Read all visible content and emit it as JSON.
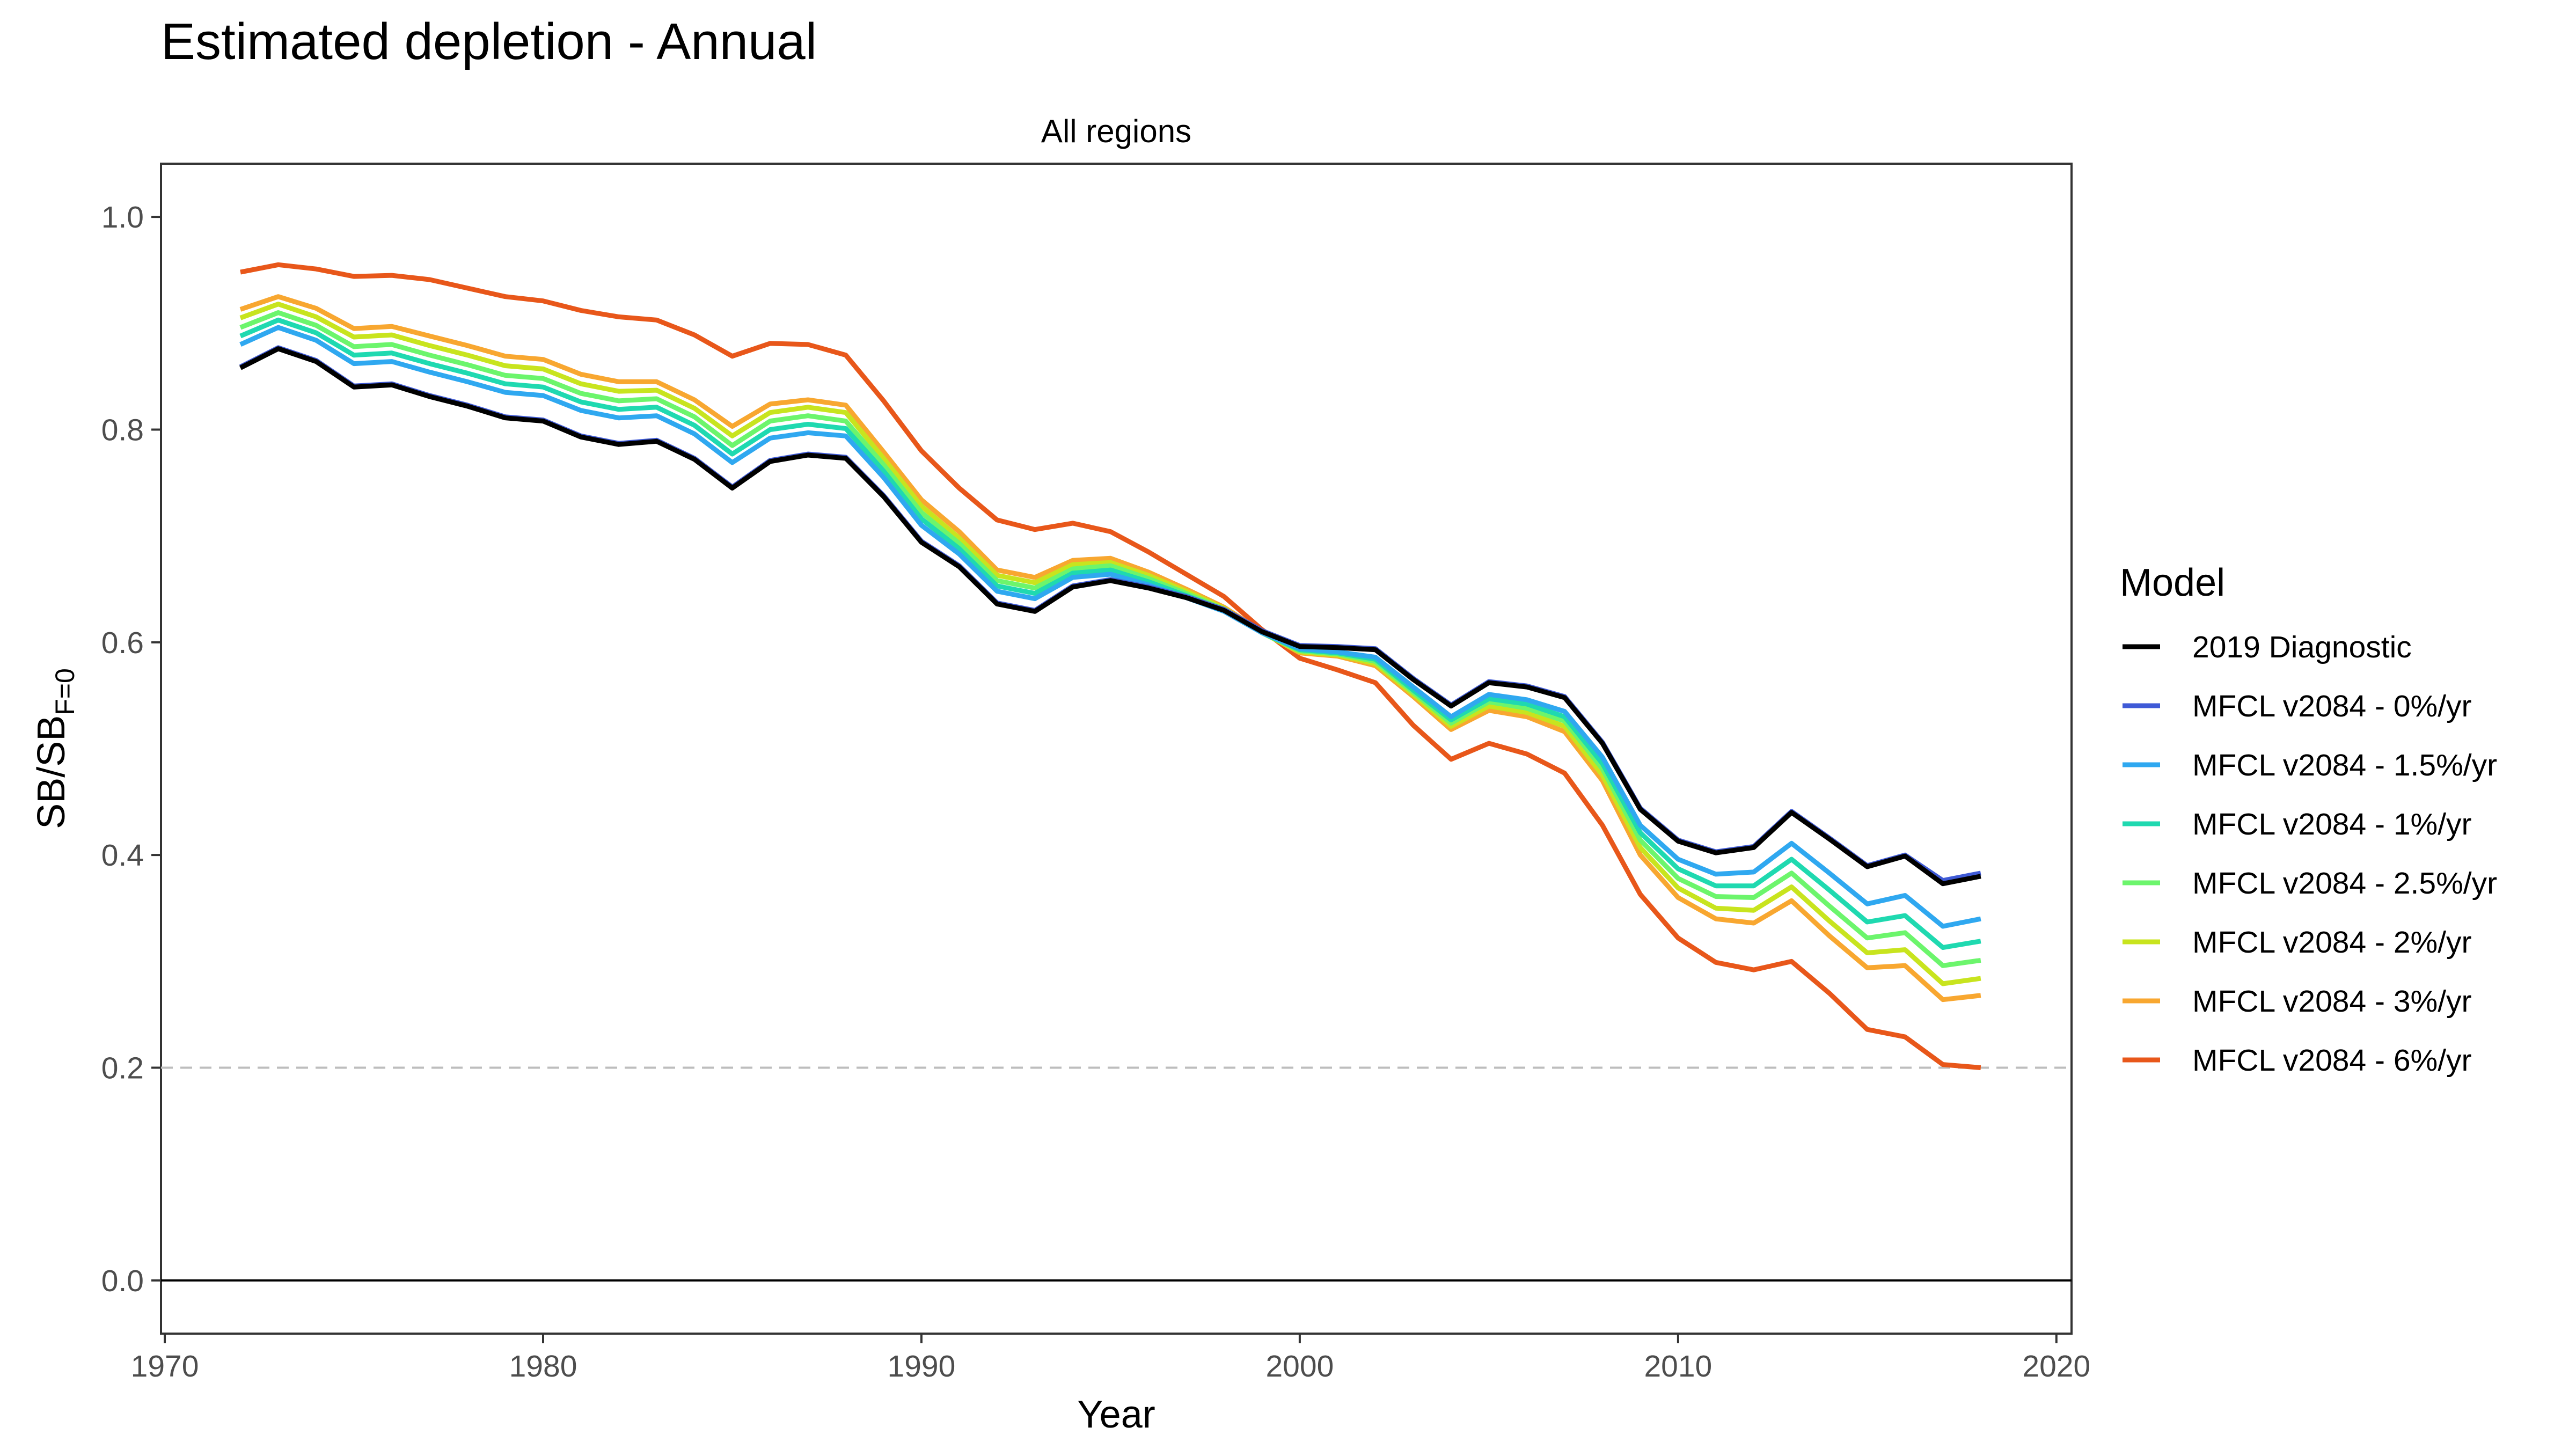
{
  "chart_data": {
    "type": "line",
    "title": "Estimated depletion - Annual",
    "panel_title": "All regions",
    "xlabel": "Year",
    "ylabel": {
      "main": "SB/SB",
      "subscript": "F=0"
    },
    "xlim": [
      1969.9,
      2020.4
    ],
    "ylim": [
      -0.05,
      1.05
    ],
    "x_ticks": [
      1970,
      1980,
      1990,
      2000,
      2010,
      2020
    ],
    "y_ticks": [
      0.0,
      0.2,
      0.4,
      0.6,
      0.8,
      1.0
    ],
    "y_tick_labels": [
      "0.0",
      "0.2",
      "0.4",
      "0.6",
      "0.8",
      "1.0"
    ],
    "reference_lines": [
      {
        "y": 0.2,
        "style": "dashed",
        "color": "#bdbdbd"
      },
      {
        "y": 0.0,
        "style": "solid",
        "color": "#000000"
      }
    ],
    "grid": false,
    "legend": {
      "title": "Model",
      "position": "right"
    },
    "x": [
      1972,
      1973,
      1974,
      1975,
      1976,
      1977,
      1978,
      1979,
      1980,
      1981,
      1982,
      1983,
      1984,
      1985,
      1986,
      1987,
      1988,
      1989,
      1990,
      1991,
      1992,
      1993,
      1994,
      1995,
      1996,
      1997,
      1998,
      1999,
      2000,
      2001,
      2002,
      2003,
      2004,
      2005,
      2006,
      2007,
      2008,
      2009,
      2010,
      2011,
      2012,
      2013,
      2014,
      2015,
      2016,
      2017,
      2018
    ],
    "series": [
      {
        "name": "2019 Diagnostic",
        "color": "#000000",
        "values": [
          0.858,
          0.876,
          0.864,
          0.84,
          0.842,
          0.831,
          0.822,
          0.811,
          0.808,
          0.793,
          0.786,
          0.789,
          0.772,
          0.745,
          0.77,
          0.776,
          0.773,
          0.737,
          0.694,
          0.671,
          0.636,
          0.629,
          0.652,
          0.658,
          0.651,
          0.642,
          0.63,
          0.61,
          0.596,
          0.595,
          0.593,
          0.565,
          0.54,
          0.562,
          0.558,
          0.548,
          0.505,
          0.443,
          0.413,
          0.402,
          0.407,
          0.44,
          0.415,
          0.389,
          0.399,
          0.373,
          0.38
        ]
      },
      {
        "name": "MFCL v2084 - 0%/yr",
        "color": "#3f5ad6",
        "values": [
          0.859,
          0.877,
          0.865,
          0.841,
          0.843,
          0.832,
          0.823,
          0.812,
          0.809,
          0.794,
          0.787,
          0.79,
          0.773,
          0.746,
          0.771,
          0.777,
          0.774,
          0.738,
          0.695,
          0.672,
          0.637,
          0.63,
          0.653,
          0.659,
          0.652,
          0.643,
          0.631,
          0.611,
          0.597,
          0.596,
          0.594,
          0.566,
          0.541,
          0.563,
          0.559,
          0.549,
          0.506,
          0.444,
          0.414,
          0.403,
          0.408,
          0.441,
          0.416,
          0.39,
          0.4,
          0.376,
          0.383
        ]
      },
      {
        "name": "MFCL v2084 - 1.5%/yr",
        "color": "#2fa8f0",
        "values": [
          0.88,
          0.896,
          0.884,
          0.862,
          0.864,
          0.854,
          0.845,
          0.835,
          0.832,
          0.818,
          0.811,
          0.813,
          0.796,
          0.769,
          0.792,
          0.797,
          0.794,
          0.755,
          0.71,
          0.683,
          0.648,
          0.641,
          0.661,
          0.664,
          0.654,
          0.642,
          0.629,
          0.609,
          0.594,
          0.591,
          0.586,
          0.558,
          0.53,
          0.551,
          0.546,
          0.535,
          0.492,
          0.428,
          0.396,
          0.382,
          0.384,
          0.411,
          0.383,
          0.354,
          0.362,
          0.333,
          0.34
        ]
      },
      {
        "name": "MFCL v2084 - 1%/yr",
        "color": "#1fd9b0",
        "values": [
          0.888,
          0.903,
          0.891,
          0.87,
          0.872,
          0.862,
          0.853,
          0.843,
          0.84,
          0.826,
          0.819,
          0.821,
          0.804,
          0.777,
          0.8,
          0.805,
          0.801,
          0.761,
          0.716,
          0.688,
          0.653,
          0.646,
          0.665,
          0.668,
          0.657,
          0.644,
          0.63,
          0.609,
          0.593,
          0.59,
          0.584,
          0.555,
          0.527,
          0.547,
          0.542,
          0.53,
          0.486,
          0.421,
          0.387,
          0.371,
          0.371,
          0.396,
          0.367,
          0.337,
          0.343,
          0.313,
          0.319
        ]
      },
      {
        "name": "MFCL v2084 - 2.5%/yr",
        "color": "#6cf56c",
        "values": [
          0.896,
          0.91,
          0.898,
          0.878,
          0.88,
          0.87,
          0.861,
          0.851,
          0.848,
          0.834,
          0.827,
          0.829,
          0.812,
          0.785,
          0.808,
          0.813,
          0.808,
          0.767,
          0.722,
          0.693,
          0.658,
          0.651,
          0.669,
          0.672,
          0.66,
          0.646,
          0.631,
          0.609,
          0.592,
          0.589,
          0.582,
          0.553,
          0.524,
          0.544,
          0.538,
          0.526,
          0.481,
          0.414,
          0.378,
          0.361,
          0.36,
          0.383,
          0.352,
          0.322,
          0.327,
          0.296,
          0.301
        ]
      },
      {
        "name": "MFCL v2084 - 2%/yr",
        "color": "#c8e41e",
        "values": [
          0.905,
          0.918,
          0.906,
          0.887,
          0.889,
          0.879,
          0.87,
          0.86,
          0.857,
          0.843,
          0.836,
          0.837,
          0.82,
          0.794,
          0.816,
          0.821,
          0.816,
          0.773,
          0.728,
          0.698,
          0.663,
          0.656,
          0.673,
          0.675,
          0.663,
          0.648,
          0.632,
          0.609,
          0.591,
          0.588,
          0.58,
          0.551,
          0.521,
          0.54,
          0.534,
          0.521,
          0.475,
          0.407,
          0.369,
          0.35,
          0.348,
          0.37,
          0.338,
          0.308,
          0.311,
          0.279,
          0.284
        ]
      },
      {
        "name": "MFCL v2084 - 3%/yr",
        "color": "#f8a730",
        "values": [
          0.913,
          0.925,
          0.914,
          0.895,
          0.897,
          0.888,
          0.879,
          0.869,
          0.866,
          0.852,
          0.845,
          0.845,
          0.828,
          0.803,
          0.824,
          0.828,
          0.823,
          0.779,
          0.734,
          0.704,
          0.668,
          0.661,
          0.677,
          0.679,
          0.666,
          0.65,
          0.633,
          0.61,
          0.59,
          0.587,
          0.578,
          0.549,
          0.518,
          0.536,
          0.53,
          0.516,
          0.47,
          0.4,
          0.36,
          0.34,
          0.336,
          0.357,
          0.324,
          0.294,
          0.296,
          0.264,
          0.268
        ]
      },
      {
        "name": "MFCL v2084 - 6%/yr",
        "color": "#e8571a",
        "values": [
          0.948,
          0.955,
          0.951,
          0.944,
          0.945,
          0.941,
          0.933,
          0.925,
          0.921,
          0.912,
          0.906,
          0.903,
          0.889,
          0.869,
          0.881,
          0.88,
          0.87,
          0.827,
          0.78,
          0.745,
          0.715,
          0.706,
          0.712,
          0.704,
          0.685,
          0.664,
          0.643,
          0.612,
          0.585,
          0.574,
          0.562,
          0.522,
          0.49,
          0.505,
          0.495,
          0.477,
          0.428,
          0.363,
          0.322,
          0.299,
          0.292,
          0.3,
          0.27,
          0.236,
          0.229,
          0.203,
          0.2
        ]
      }
    ]
  }
}
